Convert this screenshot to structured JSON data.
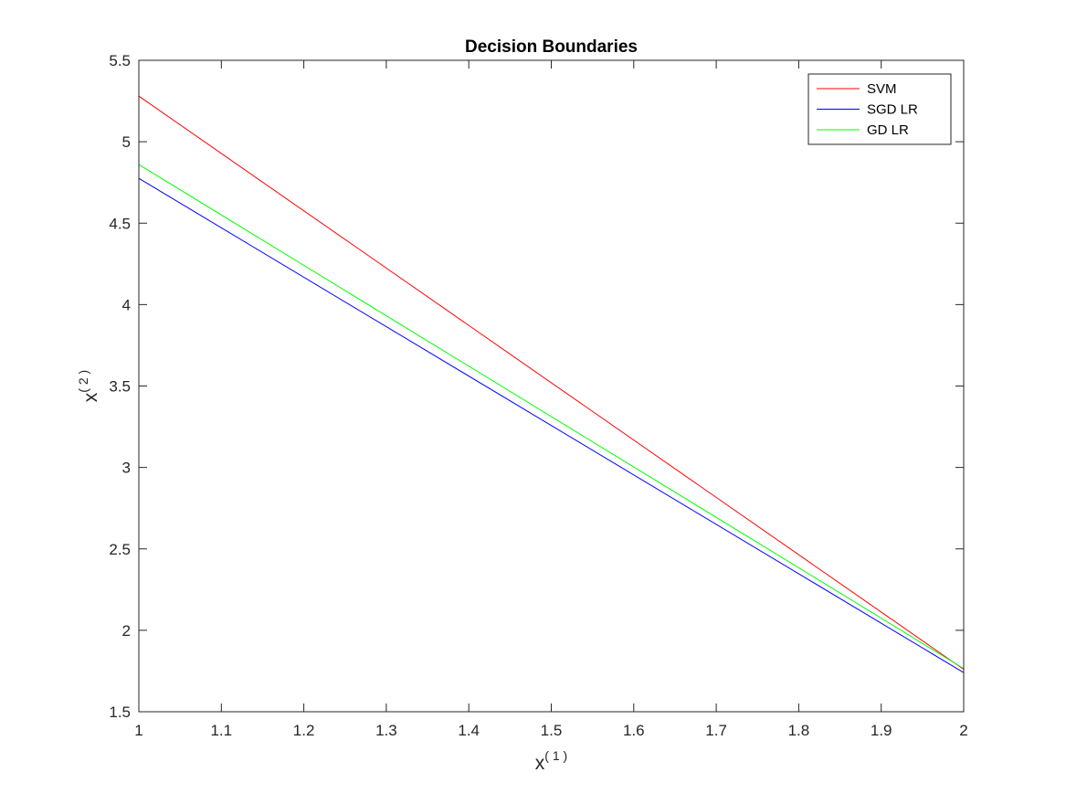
{
  "chart_data": {
    "type": "line",
    "title": "Decision Boundaries",
    "xlabel": {
      "base": "x",
      "sup": "( 1 )"
    },
    "ylabel": {
      "base": "x",
      "sup": "( 2 )"
    },
    "xlim": [
      1,
      2
    ],
    "ylim": [
      1.5,
      5.5
    ],
    "xticks": [
      1,
      1.1,
      1.2,
      1.3,
      1.4,
      1.5,
      1.6,
      1.7,
      1.8,
      1.9,
      2
    ],
    "xtick_labels": [
      "1",
      "1.1",
      "1.2",
      "1.3",
      "1.4",
      "1.5",
      "1.6",
      "1.7",
      "1.8",
      "1.9",
      "2"
    ],
    "yticks": [
      1.5,
      2,
      2.5,
      3,
      3.5,
      4,
      4.5,
      5,
      5.5
    ],
    "ytick_labels": [
      "1.5",
      "2",
      "2.5",
      "3",
      "3.5",
      "4",
      "4.5",
      "5",
      "5.5"
    ],
    "grid": false,
    "legend_position": "top-right",
    "series": [
      {
        "name": "SVM",
        "color": "#ff0000",
        "x": [
          1,
          2
        ],
        "y": [
          5.28,
          1.76
        ]
      },
      {
        "name": "SGD LR",
        "color": "#0000ff",
        "x": [
          1,
          2
        ],
        "y": [
          4.775,
          1.74
        ]
      },
      {
        "name": "GD LR",
        "color": "#00ff00",
        "x": [
          1,
          2
        ],
        "y": [
          4.86,
          1.765
        ]
      }
    ]
  }
}
